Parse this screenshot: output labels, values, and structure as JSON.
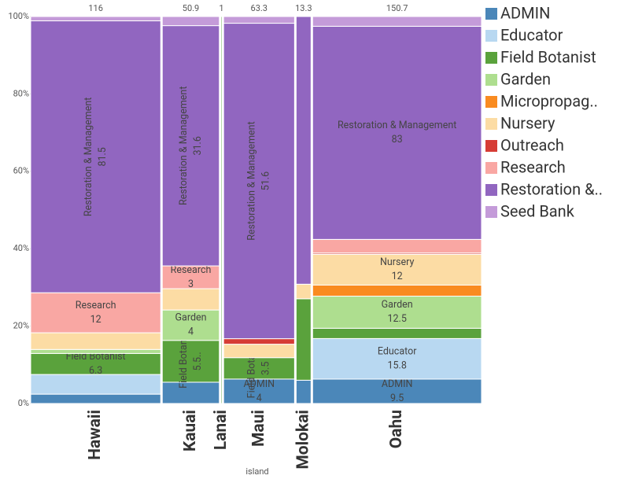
{
  "chart_data": {
    "type": "mosaic",
    "x_label": "island",
    "categories": [
      "Hawaii",
      "Kauai",
      "Lanai",
      "Maui",
      "Molokai",
      "Oahu"
    ],
    "totals": [
      116,
      50.9,
      1,
      63.3,
      13.3,
      150.7
    ],
    "ylim": [
      0,
      100
    ],
    "yticks": [
      {
        "value": 0,
        "label": "0%"
      },
      {
        "value": 20,
        "label": "20%"
      },
      {
        "value": 40,
        "label": "40%"
      },
      {
        "value": 60,
        "label": "60%"
      },
      {
        "value": 80,
        "label": "80%"
      },
      {
        "value": 100,
        "label": "100%"
      }
    ],
    "series": [
      {
        "name": "ADMIN",
        "color": "#4b87b9",
        "values": [
          2.8,
          2.8,
          null,
          4,
          0.8,
          9.5
        ],
        "labels": [
          null,
          null,
          null,
          "ADMIN",
          null,
          "ADMIN"
        ]
      },
      {
        "name": "Educator",
        "color": "#b8d8f1",
        "values": [
          5.9,
          null,
          null,
          null,
          null,
          15.8
        ],
        "labels": [
          null,
          null,
          null,
          null,
          null,
          "Educator"
        ]
      },
      {
        "name": "Field Botanist",
        "color": "#5aa23c",
        "values": [
          6.3,
          5.5,
          1,
          3.5,
          2.8,
          4
        ],
        "value_labels": [
          null,
          "5.5..",
          null,
          null,
          null,
          null
        ],
        "labels": [
          "Field Botanist",
          "Field Botan..",
          null,
          "Field Botanist",
          null,
          null
        ]
      },
      {
        "name": "Garden",
        "color": "#aede8f",
        "values": [
          1.2,
          4,
          null,
          null,
          null,
          12.5
        ],
        "labels": [
          null,
          "Garden",
          null,
          null,
          null,
          "Garden"
        ]
      },
      {
        "name": "Micropropag..",
        "color": "#f98b20",
        "values": [
          null,
          null,
          null,
          null,
          null,
          4.3
        ],
        "labels": [
          null,
          null,
          null,
          null,
          null,
          null
        ]
      },
      {
        "name": "Nursery",
        "color": "#fcdca4",
        "values": [
          5,
          2.8,
          null,
          2.2,
          0.5,
          12
        ],
        "labels": [
          null,
          null,
          null,
          null,
          null,
          "Nursery"
        ]
      },
      {
        "name": "Outreach",
        "color": "#d63c35",
        "values": [
          null,
          null,
          null,
          0.9,
          null,
          0.5
        ],
        "labels": [
          null,
          null,
          null,
          null,
          null,
          null
        ]
      },
      {
        "name": "Research",
        "color": "#f9a7a3",
        "values": [
          12,
          3,
          null,
          null,
          null,
          5.3
        ],
        "labels": [
          "Research",
          "Research",
          null,
          null,
          null,
          null
        ]
      },
      {
        "name": "Restoration &..",
        "color": "#9166c0",
        "values": [
          81.5,
          31.6,
          null,
          51.6,
          9.2,
          83
        ],
        "labels": [
          "Restoration & Management",
          "Restoration & Management",
          null,
          "Restoration & Management",
          null,
          "Restoration & Management"
        ]
      },
      {
        "name": "Seed Bank",
        "color": "#c49bd9",
        "values": [
          1.3,
          1.2,
          null,
          1.1,
          null,
          3.8
        ],
        "labels": [
          null,
          null,
          null,
          null,
          null,
          null
        ]
      }
    ]
  }
}
